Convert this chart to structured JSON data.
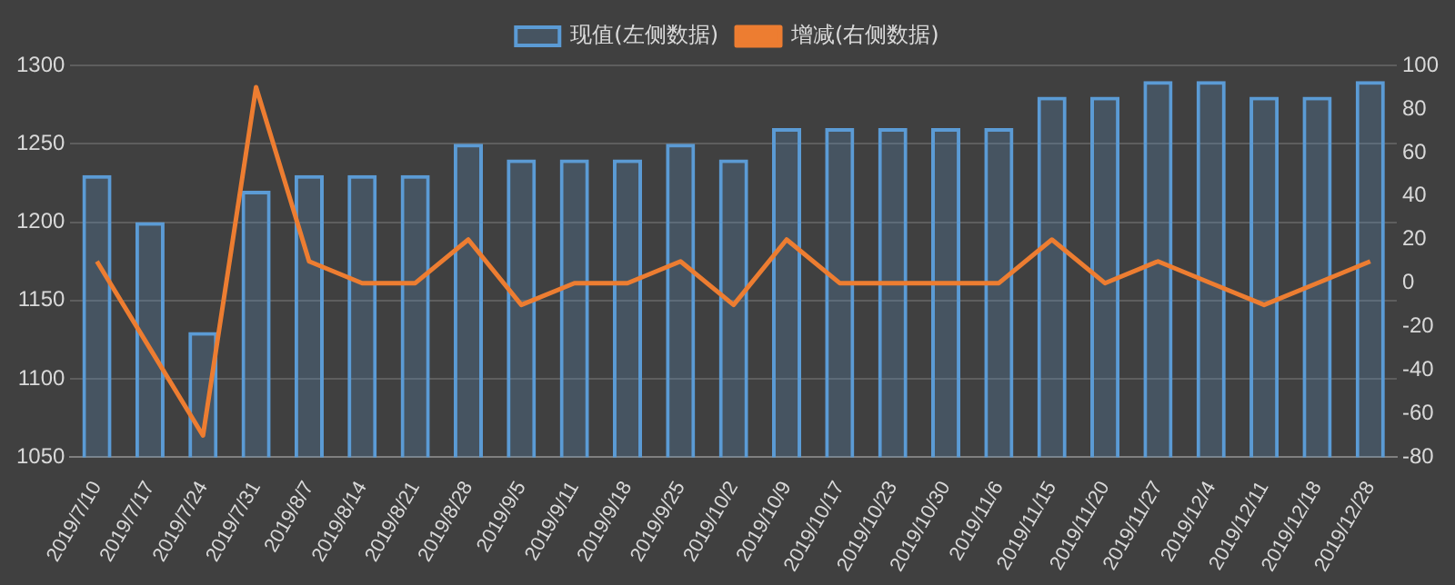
{
  "chart_data": {
    "type": "bar",
    "categories": [
      "2019/7/10",
      "2019/7/17",
      "2019/7/24",
      "2019/7/31",
      "2019/8/7",
      "2019/8/14",
      "2019/8/21",
      "2019/8/28",
      "2019/9/5",
      "2019/9/11",
      "2019/9/18",
      "2019/9/25",
      "2019/10/2",
      "2019/10/9",
      "2019/10/17",
      "2019/10/23",
      "2019/10/30",
      "2019/11/6",
      "2019/11/15",
      "2019/11/20",
      "2019/11/27",
      "2019/12/4",
      "2019/12/11",
      "2019/12/18",
      "2019/12/28"
    ],
    "series": [
      {
        "name": "现值(左侧数据)",
        "color": "#5b9bd5",
        "values": [
          1230,
          1200,
          1130,
          1220,
          1230,
          1230,
          1230,
          1250,
          1240,
          1240,
          1240,
          1250,
          1240,
          1260,
          1260,
          1260,
          1260,
          1260,
          1280,
          1280,
          1290,
          1290,
          1280,
          1280,
          1290
        ]
      },
      {
        "name": "增减(右侧数据)",
        "type": "line",
        "axis": "y2",
        "color": "#ed7d31",
        "values": [
          10,
          -30,
          -70,
          90,
          10,
          0,
          0,
          20,
          -10,
          0,
          0,
          10,
          -10,
          20,
          0,
          0,
          0,
          0,
          20,
          0,
          10,
          0,
          -10,
          0,
          10
        ]
      }
    ],
    "ylim": [
      1050,
      1300
    ],
    "yticks": [
      1050,
      1100,
      1150,
      1200,
      1250,
      1300
    ],
    "y2lim": [
      -80,
      100
    ],
    "y2ticks": [
      -80,
      -60,
      -40,
      -20,
      0,
      20,
      40,
      60,
      80,
      100
    ],
    "grid": "y",
    "legend": "top",
    "marker": "none"
  }
}
